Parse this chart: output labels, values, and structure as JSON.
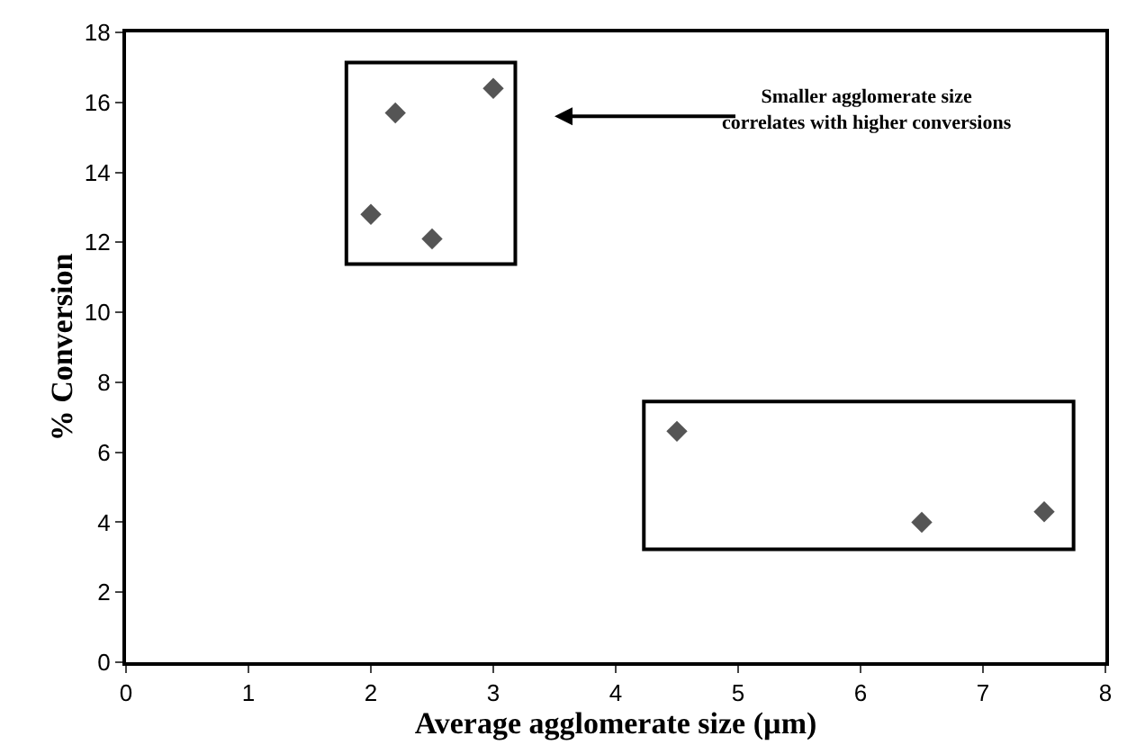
{
  "chart_data": {
    "type": "scatter",
    "xlabel": "Average agglomerate size (µm)",
    "ylabel": "% Conversion",
    "x": [
      2.0,
      2.2,
      2.5,
      3.0,
      4.5,
      6.5,
      7.5
    ],
    "values": [
      12.8,
      15.7,
      12.1,
      16.4,
      6.6,
      4.0,
      4.3
    ],
    "color": "#555555",
    "marker": "diamond",
    "xlim": [
      0,
      8
    ],
    "xticks": [
      0,
      1,
      2,
      3,
      4,
      5,
      6,
      7,
      8
    ],
    "ylim": [
      0,
      18
    ],
    "yticks": [
      0,
      2,
      4,
      6,
      8,
      10,
      12,
      14,
      16,
      18
    ],
    "legend": false,
    "annotations": [
      "Smaller agglomerate size\ncorrelates with higher conversions"
    ]
  }
}
